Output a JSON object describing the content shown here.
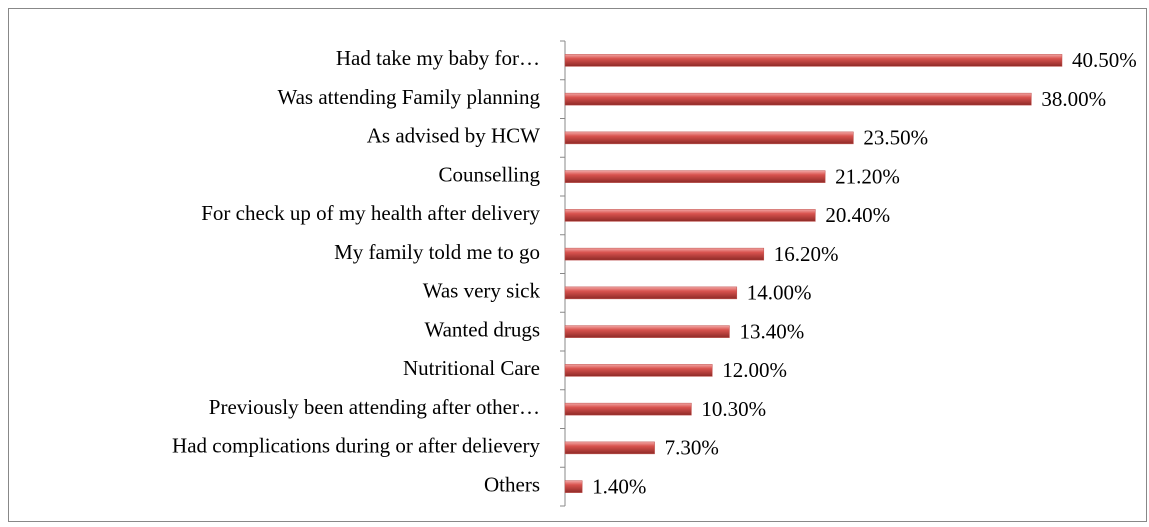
{
  "chart_data": {
    "type": "barh",
    "categories": [
      "Had take my baby for…",
      "Was attending Family planning",
      "As advised by HCW",
      "Counselling",
      "For check up of my health after delivery",
      "My family told me to go",
      "Was very sick",
      "Wanted drugs",
      "Nutritional Care",
      "Previously been attending after other…",
      "Had complications during or after delievery",
      "Others"
    ],
    "values": [
      40.5,
      38.0,
      23.5,
      21.2,
      20.4,
      16.2,
      14.0,
      13.4,
      12.0,
      10.3,
      7.3,
      1.4
    ],
    "value_labels": [
      "40.50%",
      "38.00%",
      "23.50%",
      "21.20%",
      "20.40%",
      "16.20%",
      "14.00%",
      "13.40%",
      "12.00%",
      "10.30%",
      "7.30%",
      "1.40%"
    ],
    "color": "#c0504d"
  }
}
